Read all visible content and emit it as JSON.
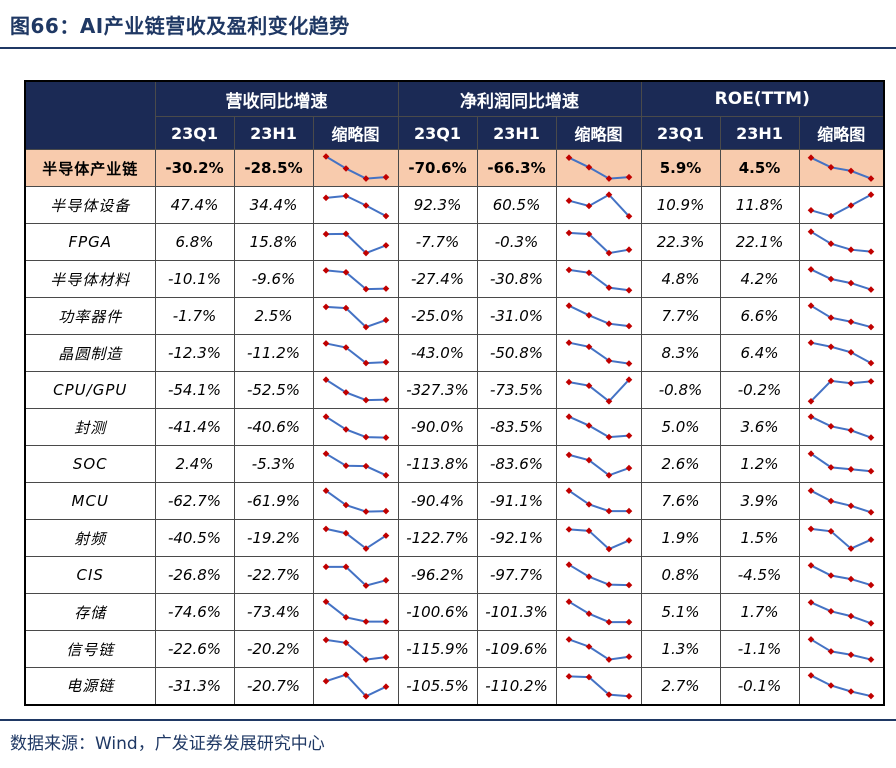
{
  "title": "图66：AI产业链营收及盈利变化趋势",
  "source": "数据来源：Wind，广发证券发展研究中心",
  "colors": {
    "header_bg": "#1B2A55",
    "header_text": "#ffffff",
    "highlight_row_bg": "#F8CBAD",
    "title_text": "#1F3864",
    "spark_line": "#4472C4",
    "spark_marker": "#C00000"
  },
  "chart_data": {
    "type": "table",
    "title": "AI产业链营收及盈利变化趋势",
    "column_groups": [
      "营收同比增速",
      "净利润同比增速",
      "ROE(TTM)"
    ],
    "sub_columns": [
      "23Q1",
      "23H1",
      "缩略图"
    ],
    "sections": [
      "revenue_yoy",
      "net_profit_yoy",
      "roe_ttm"
    ],
    "rows": [
      {
        "label": "半导体产业链",
        "highlight": true,
        "revenue_yoy": {
          "23Q1": "-30.2%",
          "23H1": "-28.5%",
          "spark": [
            1.0,
            0.5,
            0.08,
            0.14
          ]
        },
        "net_profit_yoy": {
          "23Q1": "-70.6%",
          "23H1": "-66.3%",
          "spark": [
            0.95,
            0.55,
            0.08,
            0.14
          ]
        },
        "roe_ttm": {
          "23Q1": "5.9%",
          "23H1": "4.5%",
          "spark": [
            0.95,
            0.55,
            0.4,
            0.08
          ]
        }
      },
      {
        "label": "半导体设备",
        "highlight": false,
        "revenue_yoy": {
          "23Q1": "47.4%",
          "23H1": "34.4%",
          "spark": [
            0.82,
            0.9,
            0.5,
            0.06
          ]
        },
        "net_profit_yoy": {
          "23Q1": "92.3%",
          "23H1": "60.5%",
          "spark": [
            0.7,
            0.48,
            0.95,
            0.05
          ]
        },
        "roe_ttm": {
          "23Q1": "10.9%",
          "23H1": "11.8%",
          "spark": [
            0.3,
            0.06,
            0.5,
            0.95
          ]
        }
      },
      {
        "label": "FPGA",
        "highlight": false,
        "revenue_yoy": {
          "23Q1": "6.8%",
          "23H1": "15.8%",
          "spark": [
            0.85,
            0.86,
            0.06,
            0.38
          ]
        },
        "net_profit_yoy": {
          "23Q1": "-7.7%",
          "23H1": "-0.3%",
          "spark": [
            0.9,
            0.85,
            0.06,
            0.2
          ]
        },
        "roe_ttm": {
          "23Q1": "22.3%",
          "23H1": "22.1%",
          "spark": [
            0.95,
            0.45,
            0.2,
            0.12
          ]
        }
      },
      {
        "label": "半导体材料",
        "highlight": false,
        "revenue_yoy": {
          "23Q1": "-10.1%",
          "23H1": "-9.6%",
          "spark": [
            0.88,
            0.8,
            0.1,
            0.12
          ]
        },
        "net_profit_yoy": {
          "23Q1": "-27.4%",
          "23H1": "-30.8%",
          "spark": [
            0.9,
            0.78,
            0.16,
            0.05
          ]
        },
        "roe_ttm": {
          "23Q1": "4.8%",
          "23H1": "4.2%",
          "spark": [
            0.92,
            0.52,
            0.35,
            0.08
          ]
        }
      },
      {
        "label": "功率器件",
        "highlight": false,
        "revenue_yoy": {
          "23Q1": "-1.7%",
          "23H1": "2.5%",
          "spark": [
            0.9,
            0.85,
            0.06,
            0.35
          ]
        },
        "net_profit_yoy": {
          "23Q1": "-25.0%",
          "23H1": "-31.0%",
          "spark": [
            0.95,
            0.55,
            0.2,
            0.1
          ]
        },
        "roe_ttm": {
          "23Q1": "7.7%",
          "23H1": "6.6%",
          "spark": [
            0.95,
            0.45,
            0.28,
            0.06
          ]
        }
      },
      {
        "label": "晶圆制造",
        "highlight": false,
        "revenue_yoy": {
          "23Q1": "-12.3%",
          "23H1": "-11.2%",
          "spark": [
            0.92,
            0.75,
            0.1,
            0.14
          ]
        },
        "net_profit_yoy": {
          "23Q1": "-43.0%",
          "23H1": "-50.8%",
          "spark": [
            0.95,
            0.78,
            0.2,
            0.08
          ]
        },
        "roe_ttm": {
          "23Q1": "8.3%",
          "23H1": "6.4%",
          "spark": [
            0.95,
            0.78,
            0.55,
            0.1
          ]
        }
      },
      {
        "label": "CPU/GPU",
        "highlight": false,
        "revenue_yoy": {
          "23Q1": "-54.1%",
          "23H1": "-52.5%",
          "spark": [
            0.95,
            0.42,
            0.1,
            0.12
          ]
        },
        "net_profit_yoy": {
          "23Q1": "-327.3%",
          "23H1": "-73.5%",
          "spark": [
            0.85,
            0.7,
            0.05,
            0.95
          ]
        },
        "roe_ttm": {
          "23Q1": "-0.8%",
          "23H1": "-0.2%",
          "spark": [
            0.05,
            0.9,
            0.8,
            0.88
          ]
        }
      },
      {
        "label": "封测",
        "highlight": false,
        "revenue_yoy": {
          "23Q1": "-41.4%",
          "23H1": "-40.6%",
          "spark": [
            0.95,
            0.42,
            0.1,
            0.08
          ]
        },
        "net_profit_yoy": {
          "23Q1": "-90.0%",
          "23H1": "-83.5%",
          "spark": [
            0.95,
            0.58,
            0.1,
            0.16
          ]
        },
        "roe_ttm": {
          "23Q1": "5.0%",
          "23H1": "3.6%",
          "spark": [
            0.95,
            0.55,
            0.38,
            0.08
          ]
        }
      },
      {
        "label": "SOC",
        "highlight": false,
        "revenue_yoy": {
          "23Q1": "2.4%",
          "23H1": "-5.3%",
          "spark": [
            0.95,
            0.45,
            0.43,
            0.05
          ]
        },
        "net_profit_yoy": {
          "23Q1": "-113.8%",
          "23H1": "-83.6%",
          "spark": [
            0.9,
            0.68,
            0.05,
            0.35
          ]
        },
        "roe_ttm": {
          "23Q1": "2.6%",
          "23H1": "1.2%",
          "spark": [
            0.95,
            0.38,
            0.3,
            0.22
          ]
        }
      },
      {
        "label": "MCU",
        "highlight": false,
        "revenue_yoy": {
          "23Q1": "-62.7%",
          "23H1": "-61.9%",
          "spark": [
            0.95,
            0.35,
            0.08,
            0.1
          ]
        },
        "net_profit_yoy": {
          "23Q1": "-90.4%",
          "23H1": "-91.1%",
          "spark": [
            0.95,
            0.38,
            0.1,
            0.1
          ]
        },
        "roe_ttm": {
          "23Q1": "7.6%",
          "23H1": "3.9%",
          "spark": [
            0.95,
            0.52,
            0.32,
            0.05
          ]
        }
      },
      {
        "label": "射频",
        "highlight": false,
        "revenue_yoy": {
          "23Q1": "-40.5%",
          "23H1": "-19.2%",
          "spark": [
            0.9,
            0.72,
            0.08,
            0.62
          ]
        },
        "net_profit_yoy": {
          "23Q1": "-122.7%",
          "23H1": "-92.1%",
          "spark": [
            0.88,
            0.82,
            0.06,
            0.42
          ]
        },
        "roe_ttm": {
          "23Q1": "1.9%",
          "23H1": "1.5%",
          "spark": [
            0.9,
            0.8,
            0.08,
            0.45
          ]
        }
      },
      {
        "label": "CIS",
        "highlight": false,
        "revenue_yoy": {
          "23Q1": "-26.8%",
          "23H1": "-22.7%",
          "spark": [
            0.86,
            0.86,
            0.08,
            0.3
          ]
        },
        "net_profit_yoy": {
          "23Q1": "-96.2%",
          "23H1": "-97.7%",
          "spark": [
            0.95,
            0.45,
            0.12,
            0.1
          ]
        },
        "roe_ttm": {
          "23Q1": "0.8%",
          "23H1": "-4.5%",
          "spark": [
            0.92,
            0.5,
            0.35,
            0.1
          ]
        }
      },
      {
        "label": "存储",
        "highlight": false,
        "revenue_yoy": {
          "23Q1": "-74.6%",
          "23H1": "-73.4%",
          "spark": [
            0.95,
            0.3,
            0.12,
            0.12
          ]
        },
        "net_profit_yoy": {
          "23Q1": "-100.6%",
          "23H1": "-101.3%",
          "spark": [
            0.95,
            0.45,
            0.1,
            0.1
          ]
        },
        "roe_ttm": {
          "23Q1": "5.1%",
          "23H1": "1.7%",
          "spark": [
            0.92,
            0.55,
            0.35,
            0.05
          ]
        }
      },
      {
        "label": "信号链",
        "highlight": false,
        "revenue_yoy": {
          "23Q1": "-22.6%",
          "23H1": "-20.2%",
          "spark": [
            0.9,
            0.78,
            0.08,
            0.18
          ]
        },
        "net_profit_yoy": {
          "23Q1": "-115.9%",
          "23H1": "-109.6%",
          "spark": [
            0.92,
            0.62,
            0.08,
            0.2
          ]
        },
        "roe_ttm": {
          "23Q1": "1.3%",
          "23H1": "-1.1%",
          "spark": [
            0.92,
            0.42,
            0.28,
            0.08
          ]
        }
      },
      {
        "label": "电源链",
        "highlight": false,
        "revenue_yoy": {
          "23Q1": "-31.3%",
          "23H1": "-20.7%",
          "spark": [
            0.68,
            0.95,
            0.05,
            0.45
          ]
        },
        "net_profit_yoy": {
          "23Q1": "-105.5%",
          "23H1": "-110.2%",
          "spark": [
            0.88,
            0.85,
            0.12,
            0.05
          ]
        },
        "roe_ttm": {
          "23Q1": "2.7%",
          "23H1": "-0.1%",
          "spark": [
            0.92,
            0.5,
            0.25,
            0.06
          ]
        }
      }
    ]
  }
}
